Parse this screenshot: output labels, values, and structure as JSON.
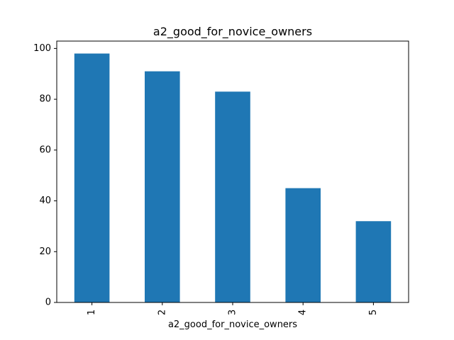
{
  "chart_data": {
    "type": "bar",
    "title": "a2_good_for_novice_owners",
    "xlabel": "a2_good_for_novice_owners",
    "ylabel": "",
    "categories": [
      "1",
      "2",
      "3",
      "4",
      "5"
    ],
    "values": [
      98,
      91,
      83,
      45,
      32
    ],
    "ylim": [
      0,
      102.9
    ],
    "yticks": [
      0,
      20,
      40,
      60,
      80,
      100
    ],
    "bar_color": "#1f77b4",
    "grid": false,
    "legend": "none",
    "xtick_rotation": "vertical"
  }
}
